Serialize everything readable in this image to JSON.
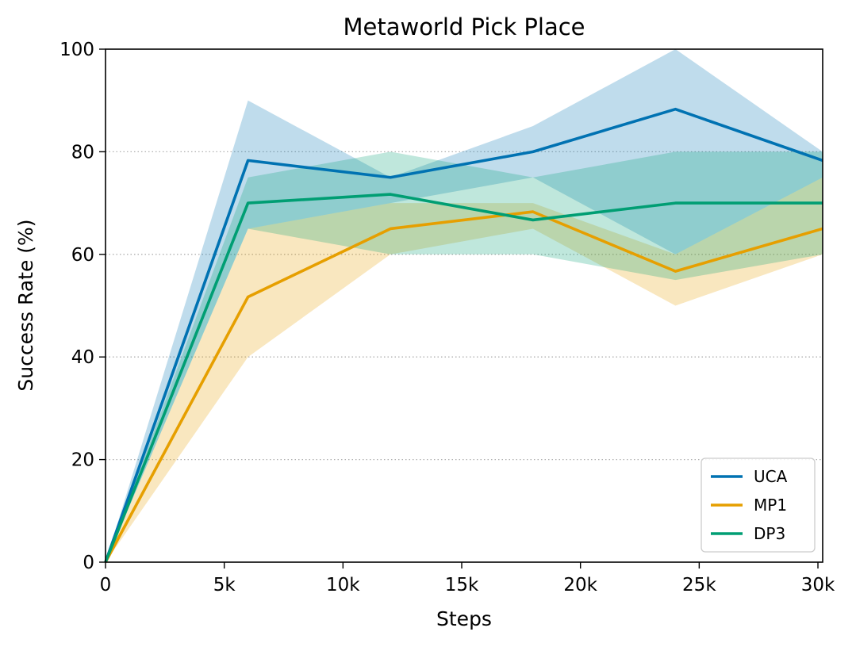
{
  "chart_data": {
    "type": "line",
    "title": "Metaworld Pick Place",
    "xlabel": "Steps",
    "ylabel": "Success Rate (%)",
    "xlim": [
      0,
      30200
    ],
    "ylim": [
      0,
      100
    ],
    "x_ticks": [
      0,
      5000,
      10000,
      15000,
      20000,
      25000,
      30000
    ],
    "x_tick_labels": [
      "0",
      "5k",
      "10k",
      "15k",
      "20k",
      "25k",
      "30k"
    ],
    "y_ticks": [
      0,
      20,
      40,
      60,
      80,
      100
    ],
    "y_tick_labels": [
      "0",
      "20",
      "40",
      "60",
      "80",
      "100"
    ],
    "grid": {
      "y": true,
      "style": "dotted"
    },
    "legend_position": "bottom-right",
    "x": [
      0,
      6000,
      12000,
      18000,
      24000,
      30200
    ],
    "series": [
      {
        "name": "UCA",
        "color": "#0072B2",
        "values": [
          0,
          78.3,
          75,
          80,
          88.3,
          78.3
        ],
        "lower": [
          0,
          65,
          70,
          75,
          60,
          75
        ],
        "upper": [
          0,
          90,
          75,
          85,
          100,
          80
        ]
      },
      {
        "name": "MP1",
        "color": "#E69F00",
        "values": [
          0,
          51.7,
          65,
          68.3,
          56.7,
          65
        ],
        "lower": [
          0,
          40,
          60,
          65,
          50,
          60
        ],
        "upper": [
          0,
          65,
          70,
          70,
          60,
          75
        ]
      },
      {
        "name": "DP3",
        "color": "#009E73",
        "values": [
          0,
          70,
          71.7,
          66.7,
          70,
          70
        ],
        "lower": [
          0,
          65,
          60,
          60,
          55,
          60
        ],
        "upper": [
          0,
          75,
          80,
          75,
          80,
          80
        ]
      }
    ]
  }
}
